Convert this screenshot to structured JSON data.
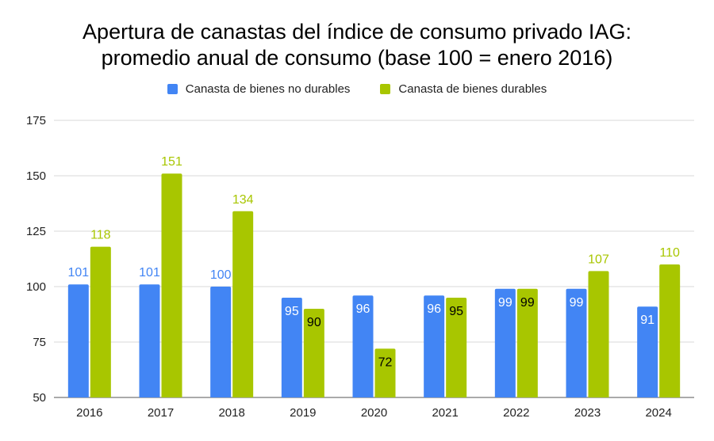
{
  "chart_data": {
    "type": "bar",
    "title_lines": [
      "Apertura de canastas del índice de consumo privado IAG:",
      "promedio anual de consumo (base 100 = enero 2016)"
    ],
    "xlabel": "",
    "ylabel": "",
    "categories": [
      "2016",
      "2017",
      "2018",
      "2019",
      "2020",
      "2021",
      "2022",
      "2023",
      "2024"
    ],
    "ylim": [
      50,
      175
    ],
    "yticks": [
      50,
      75,
      100,
      125,
      150,
      175
    ],
    "grid": true,
    "legend_position": "top-center",
    "series": [
      {
        "name": "Canasta de bienes no durables",
        "color": "#4285F4",
        "values": [
          101,
          101,
          100,
          95,
          96,
          96,
          99,
          99,
          91
        ],
        "labels": [
          "101",
          "101",
          "100",
          "95",
          "96",
          "96",
          "99",
          "99",
          "91"
        ]
      },
      {
        "name": "Canasta de bienes durables",
        "color": "#A8C600",
        "values": [
          118,
          151,
          134,
          90,
          72,
          95,
          99,
          107,
          110
        ],
        "labels": [
          "118",
          "151",
          "134",
          "90",
          "72",
          "95",
          "99",
          "107",
          "110"
        ]
      }
    ]
  }
}
